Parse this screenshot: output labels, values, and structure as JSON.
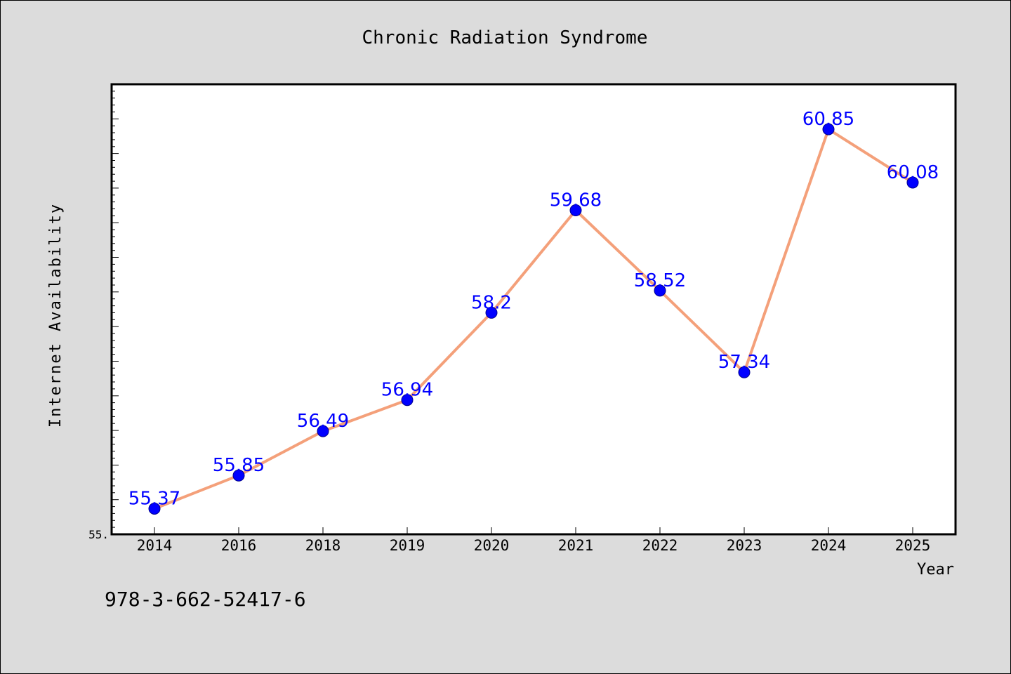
{
  "chart_data": {
    "type": "line",
    "title": "Chronic Radiation Syndrome",
    "xlabel": "Year",
    "ylabel": "Internet Availability",
    "categories": [
      "2014",
      "2016",
      "2018",
      "2019",
      "2020",
      "2021",
      "2022",
      "2023",
      "2024",
      "2025"
    ],
    "values": [
      55.37,
      55.85,
      56.49,
      56.94,
      58.2,
      59.68,
      58.52,
      57.34,
      60.85,
      60.08
    ],
    "data_labels": [
      "55.37",
      "55.85",
      "56.49",
      "56.94",
      "58.2",
      "59.68",
      "58.52",
      "57.34",
      "60.85",
      "60.08"
    ],
    "ylim": [
      55.0,
      61.5
    ],
    "y_tick_labels": [
      "55."
    ],
    "grid": false,
    "line_color": "#f4a07a",
    "marker_color": "#0000ff",
    "label_color": "#0000ff"
  },
  "footer_text": "978-3-662-52417-6"
}
